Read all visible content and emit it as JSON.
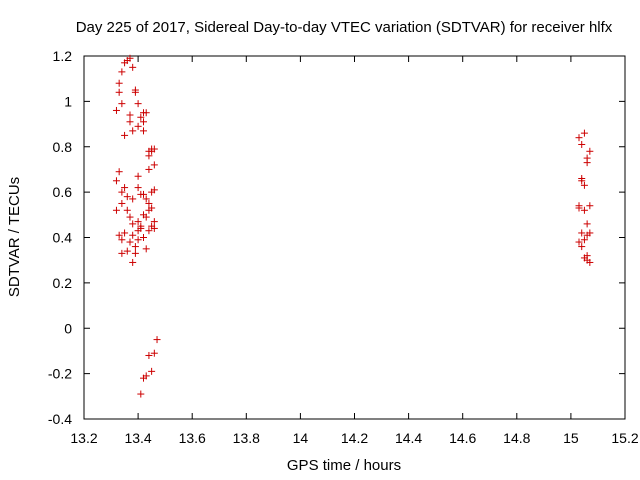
{
  "chart_data": {
    "type": "scatter",
    "title": "Day 225 of 2017, Sidereal Day-to-day VTEC variation (SDTVAR) for receiver hlfx",
    "xlabel": "GPS time / hours",
    "ylabel": "SDTVAR / TECUs",
    "xlim": [
      13.2,
      15.2
    ],
    "ylim": [
      -0.4,
      1.2
    ],
    "xticks": [
      13.2,
      13.4,
      13.6,
      13.8,
      14.0,
      14.2,
      14.4,
      14.6,
      14.8,
      15.0,
      15.2
    ],
    "xtick_labels": [
      "13.2",
      "13.4",
      "13.6",
      "13.8",
      "14",
      "14.2",
      "14.4",
      "14.6",
      "14.8",
      "15",
      "15.2"
    ],
    "yticks": [
      -0.4,
      -0.2,
      0,
      0.2,
      0.4,
      0.6,
      0.8,
      1.0,
      1.2
    ],
    "ytick_labels": [
      "-0.4",
      "-0.2",
      "0",
      "0.2",
      "0.4",
      "0.6",
      "0.8",
      "1",
      "1.2"
    ],
    "grid": false,
    "marker": "+",
    "color": "#cc0000",
    "series": [
      {
        "name": "SDTVAR",
        "points": [
          [
            13.33,
            1.08
          ],
          [
            13.33,
            1.04
          ],
          [
            13.34,
            1.13
          ],
          [
            13.35,
            1.17
          ],
          [
            13.36,
            1.18
          ],
          [
            13.37,
            1.19
          ],
          [
            13.38,
            1.15
          ],
          [
            13.32,
            0.96
          ],
          [
            13.34,
            0.99
          ],
          [
            13.35,
            0.85
          ],
          [
            13.37,
            0.91
          ],
          [
            13.37,
            0.94
          ],
          [
            13.38,
            0.87
          ],
          [
            13.39,
            1.04
          ],
          [
            13.39,
            1.05
          ],
          [
            13.4,
            0.89
          ],
          [
            13.4,
            0.99
          ],
          [
            13.41,
            0.93
          ],
          [
            13.42,
            0.95
          ],
          [
            13.42,
            0.91
          ],
          [
            13.42,
            0.87
          ],
          [
            13.43,
            0.95
          ],
          [
            13.44,
            0.78
          ],
          [
            13.44,
            0.76
          ],
          [
            13.45,
            0.78
          ],
          [
            13.45,
            0.79
          ],
          [
            13.46,
            0.79
          ],
          [
            13.46,
            0.72
          ],
          [
            13.44,
            0.7
          ],
          [
            13.4,
            0.67
          ],
          [
            13.32,
            0.65
          ],
          [
            13.33,
            0.69
          ],
          [
            13.34,
            0.6
          ],
          [
            13.35,
            0.62
          ],
          [
            13.36,
            0.58
          ],
          [
            13.38,
            0.57
          ],
          [
            13.4,
            0.62
          ],
          [
            13.41,
            0.59
          ],
          [
            13.42,
            0.59
          ],
          [
            13.43,
            0.57
          ],
          [
            13.44,
            0.55
          ],
          [
            13.46,
            0.61
          ],
          [
            13.45,
            0.6
          ],
          [
            13.32,
            0.52
          ],
          [
            13.34,
            0.55
          ],
          [
            13.36,
            0.52
          ],
          [
            13.37,
            0.49
          ],
          [
            13.38,
            0.46
          ],
          [
            13.4,
            0.47
          ],
          [
            13.41,
            0.45
          ],
          [
            13.42,
            0.5
          ],
          [
            13.43,
            0.49
          ],
          [
            13.44,
            0.52
          ],
          [
            13.45,
            0.53
          ],
          [
            13.46,
            0.47
          ],
          [
            13.46,
            0.44
          ],
          [
            13.33,
            0.41
          ],
          [
            13.34,
            0.39
          ],
          [
            13.35,
            0.42
          ],
          [
            13.36,
            0.34
          ],
          [
            13.37,
            0.38
          ],
          [
            13.38,
            0.41
          ],
          [
            13.39,
            0.36
          ],
          [
            13.39,
            0.33
          ],
          [
            13.4,
            0.39
          ],
          [
            13.4,
            0.43
          ],
          [
            13.41,
            0.44
          ],
          [
            13.42,
            0.4
          ],
          [
            13.43,
            0.35
          ],
          [
            13.44,
            0.43
          ],
          [
            13.45,
            0.45
          ],
          [
            13.38,
            0.29
          ],
          [
            13.34,
            0.33
          ],
          [
            13.41,
            -0.29
          ],
          [
            13.42,
            -0.22
          ],
          [
            13.43,
            -0.21
          ],
          [
            13.44,
            -0.12
          ],
          [
            13.45,
            -0.19
          ],
          [
            13.46,
            -0.11
          ],
          [
            13.47,
            -0.05
          ],
          [
            15.03,
            0.84
          ],
          [
            15.04,
            0.81
          ],
          [
            15.05,
            0.86
          ],
          [
            15.06,
            0.73
          ],
          [
            15.06,
            0.75
          ],
          [
            15.07,
            0.78
          ],
          [
            15.04,
            0.66
          ],
          [
            15.05,
            0.63
          ],
          [
            15.04,
            0.65
          ],
          [
            15.03,
            0.54
          ],
          [
            15.03,
            0.53
          ],
          [
            15.05,
            0.52
          ],
          [
            15.07,
            0.54
          ],
          [
            15.06,
            0.46
          ],
          [
            15.04,
            0.42
          ],
          [
            15.03,
            0.38
          ],
          [
            15.04,
            0.36
          ],
          [
            15.05,
            0.39
          ],
          [
            15.06,
            0.41
          ],
          [
            15.07,
            0.42
          ],
          [
            15.06,
            0.32
          ],
          [
            15.06,
            0.3
          ],
          [
            15.07,
            0.29
          ],
          [
            15.05,
            0.31
          ]
        ]
      }
    ]
  }
}
